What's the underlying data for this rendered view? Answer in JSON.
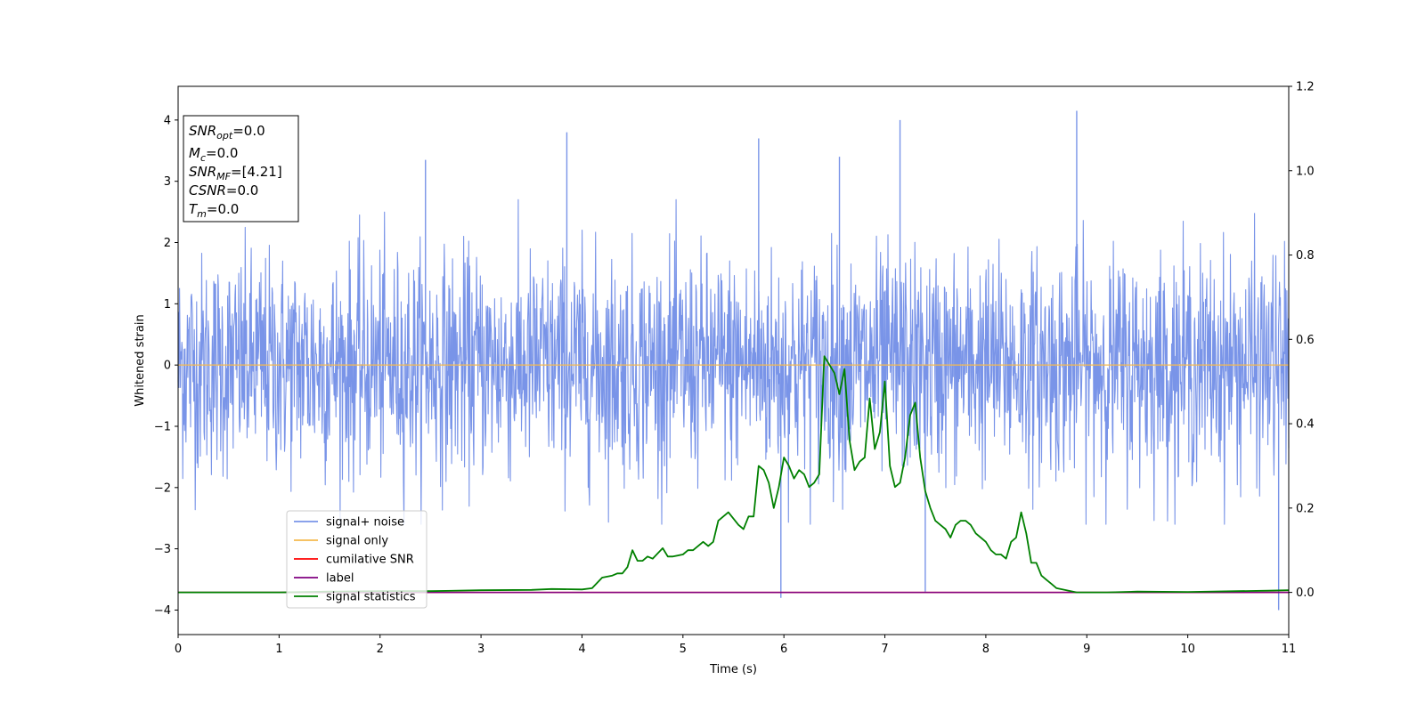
{
  "chart_data": {
    "type": "line",
    "xlabel": "Time (s)",
    "ylabel": "Whitened strain",
    "xlim": [
      0,
      11
    ],
    "ylim": [
      -4.4,
      4.55
    ],
    "y2lim": [
      -0.1,
      1.2
    ],
    "x_ticks": [
      "0",
      "1",
      "2",
      "3",
      "4",
      "5",
      "6",
      "7",
      "8",
      "9",
      "10",
      "11"
    ],
    "y_ticks": [
      "4",
      "3",
      "2",
      "1",
      "0",
      "−1",
      "−2",
      "−3",
      "−4"
    ],
    "y_tick_values": [
      4,
      3,
      2,
      1,
      0,
      -1,
      -2,
      -3,
      -4
    ],
    "y2_ticks": [
      "1.2",
      "1.0",
      "0.8",
      "0.6",
      "0.4",
      "0.2",
      "0.0"
    ],
    "y2_tick_values": [
      1.2,
      1.0,
      0.8,
      0.6,
      0.4,
      0.2,
      0.0
    ],
    "legend_location": "lower-left",
    "colors": {
      "signal_noise": "#7994e8",
      "signal_only": "#f5b94e",
      "cumulative_snr": "#ff0000",
      "label": "#800080",
      "signal_statistics": "#008000"
    },
    "series": [
      {
        "name": "signal+ noise",
        "axis": "left",
        "description_kind": "noise",
        "typical_range": [
          -2.4,
          2.6
        ],
        "extreme_peaks": [
          {
            "x": 2.45,
            "y": 3.35
          },
          {
            "x": 3.85,
            "y": 3.8
          },
          {
            "x": 5.75,
            "y": 3.7
          },
          {
            "x": 6.55,
            "y": 3.4
          },
          {
            "x": 7.15,
            "y": 4.0
          },
          {
            "x": 8.9,
            "y": 4.15
          },
          {
            "x": 5.97,
            "y": -3.8
          },
          {
            "x": 7.4,
            "y": -3.7
          },
          {
            "x": 10.9,
            "y": -4.0
          }
        ]
      },
      {
        "name": "signal only",
        "axis": "left",
        "x": [
          0,
          11
        ],
        "y": [
          0,
          0
        ]
      },
      {
        "name": "cumilative SNR",
        "axis": "right",
        "x": [
          0,
          11
        ],
        "y": [
          0,
          0
        ]
      },
      {
        "name": "label",
        "axis": "right",
        "x": [
          0,
          11
        ],
        "y": [
          0,
          0
        ]
      },
      {
        "name": "signal statistics",
        "axis": "right",
        "x": [
          0,
          0.5,
          1.0,
          1.5,
          2.0,
          2.5,
          3.0,
          3.5,
          3.7,
          4.0,
          4.1,
          4.2,
          4.3,
          4.35,
          4.4,
          4.45,
          4.5,
          4.55,
          4.6,
          4.65,
          4.7,
          4.8,
          4.85,
          4.9,
          5.0,
          5.05,
          5.1,
          5.2,
          5.25,
          5.3,
          5.35,
          5.45,
          5.55,
          5.6,
          5.65,
          5.7,
          5.75,
          5.8,
          5.85,
          5.9,
          5.95,
          6.0,
          6.05,
          6.1,
          6.15,
          6.2,
          6.25,
          6.3,
          6.35,
          6.4,
          6.45,
          6.5,
          6.55,
          6.6,
          6.65,
          6.7,
          6.75,
          6.8,
          6.85,
          6.9,
          6.95,
          7.0,
          7.05,
          7.1,
          7.15,
          7.2,
          7.25,
          7.3,
          7.35,
          7.4,
          7.45,
          7.5,
          7.55,
          7.6,
          7.65,
          7.7,
          7.75,
          7.8,
          7.85,
          7.9,
          7.95,
          8.0,
          8.05,
          8.1,
          8.15,
          8.2,
          8.25,
          8.3,
          8.35,
          8.4,
          8.45,
          8.5,
          8.55,
          8.6,
          8.65,
          8.7,
          8.8,
          8.9,
          9.0,
          9.2,
          9.5,
          10.0,
          10.5,
          10.8,
          11.0
        ],
        "y": [
          0.0,
          0.0,
          0.0,
          0.002,
          0.003,
          0.003,
          0.005,
          0.006,
          0.008,
          0.007,
          0.01,
          0.035,
          0.04,
          0.045,
          0.045,
          0.06,
          0.1,
          0.075,
          0.075,
          0.085,
          0.08,
          0.105,
          0.085,
          0.085,
          0.09,
          0.1,
          0.1,
          0.12,
          0.11,
          0.12,
          0.17,
          0.19,
          0.16,
          0.15,
          0.18,
          0.18,
          0.3,
          0.29,
          0.26,
          0.2,
          0.25,
          0.32,
          0.3,
          0.27,
          0.29,
          0.28,
          0.25,
          0.26,
          0.28,
          0.56,
          0.54,
          0.52,
          0.47,
          0.53,
          0.36,
          0.29,
          0.31,
          0.32,
          0.46,
          0.34,
          0.38,
          0.5,
          0.3,
          0.25,
          0.26,
          0.32,
          0.42,
          0.45,
          0.32,
          0.24,
          0.2,
          0.17,
          0.16,
          0.15,
          0.13,
          0.16,
          0.17,
          0.17,
          0.16,
          0.14,
          0.13,
          0.12,
          0.1,
          0.09,
          0.09,
          0.08,
          0.12,
          0.13,
          0.19,
          0.14,
          0.07,
          0.07,
          0.04,
          0.03,
          0.02,
          0.01,
          0.005,
          0.0,
          0.0,
          0.0,
          0.002,
          0.001,
          0.003,
          0.004,
          0.005
        ]
      }
    ],
    "stats_box": [
      {
        "base": "SNR",
        "sub": "opt",
        "value": "=0.0"
      },
      {
        "base": "M",
        "sub": "c",
        "value": "=0.0"
      },
      {
        "base": "SNR",
        "sub": "MF",
        "value": "=[4.21]"
      },
      {
        "base": "CSNR",
        "sub": "",
        "value": "=0.0"
      },
      {
        "base": "T",
        "sub": "m",
        "value": "=0.0"
      }
    ],
    "legend": [
      {
        "label": "signal+ noise",
        "color": "#7994e8"
      },
      {
        "label": "signal only",
        "color": "#f5b94e"
      },
      {
        "label": "cumilative SNR",
        "color": "#ff0000"
      },
      {
        "label": "label",
        "color": "#800080"
      },
      {
        "label": "signal statistics",
        "color": "#008000"
      }
    ]
  }
}
